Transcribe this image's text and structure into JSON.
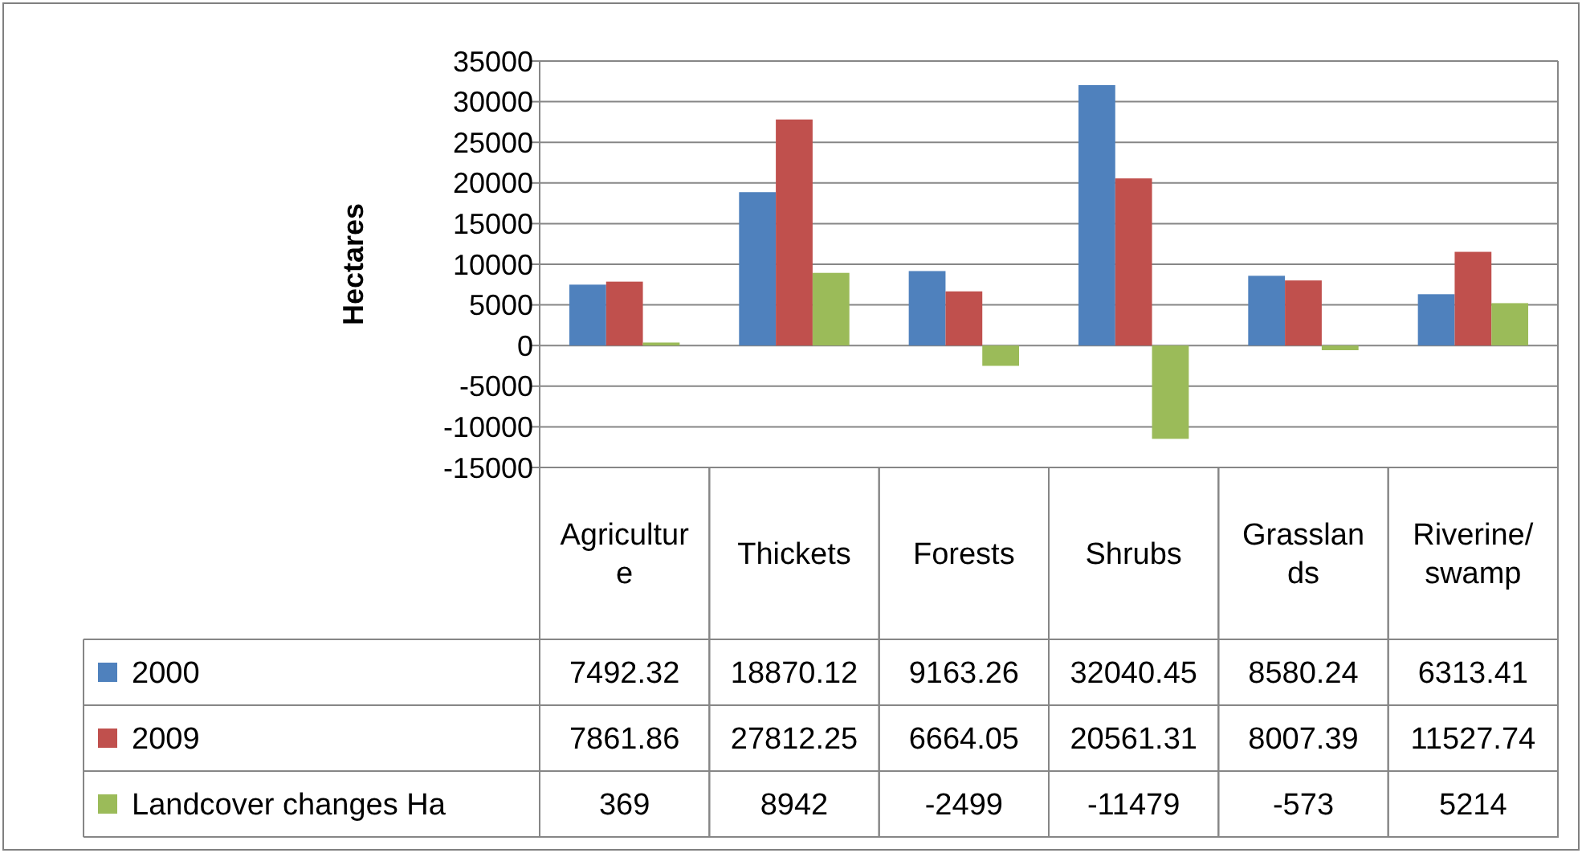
{
  "chart_data": {
    "type": "bar",
    "ylabel": "Hectares",
    "categories": [
      "Agriculture",
      "Thickets",
      "Forests",
      "Shrubs",
      "Grasslands",
      "Riverine/swamp"
    ],
    "series": [
      {
        "name": "2000",
        "color": "#4f81bd",
        "values": [
          7492.32,
          18870.12,
          9163.26,
          32040.45,
          8580.24,
          6313.41
        ]
      },
      {
        "name": "2009",
        "color": "#c0504d",
        "values": [
          7861.86,
          27812.25,
          6664.05,
          20561.31,
          8007.39,
          11527.74
        ]
      },
      {
        "name": "Landcover changes Ha",
        "color": "#9bbb59",
        "values": [
          369,
          8942,
          -2499,
          -11479,
          -573,
          5214
        ]
      }
    ],
    "ylim": [
      -15000,
      35000
    ],
    "yticks": [
      -15000,
      -10000,
      -5000,
      0,
      5000,
      10000,
      15000,
      20000,
      25000,
      30000,
      35000
    ],
    "grid": "y",
    "legend": "bottom",
    "data_labels": true
  }
}
